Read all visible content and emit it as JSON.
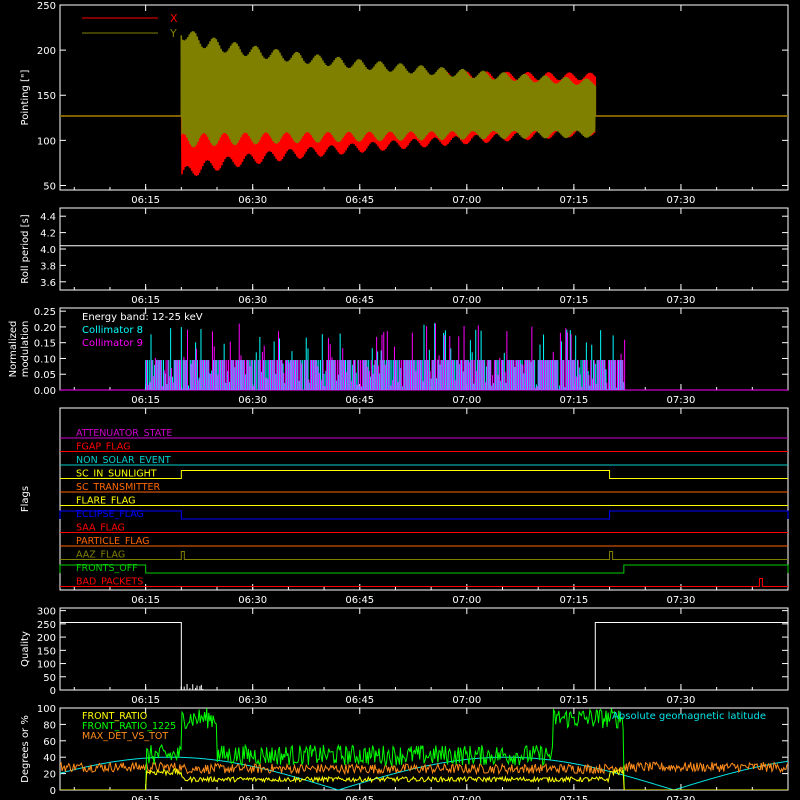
{
  "chart_data": [
    {
      "type": "line",
      "ylabel": "Pointing [\"]",
      "ylim": [
        45,
        250
      ],
      "yticks": [
        50,
        100,
        150,
        200,
        250
      ],
      "xlim": [
        "06:03",
        "07:45"
      ],
      "xticks": [
        "06:15",
        "06:30",
        "06:45",
        "07:00",
        "07:15",
        "07:30"
      ],
      "legend": "top-left",
      "series": [
        {
          "name": "X",
          "color": "#ff0000",
          "baseline": 127,
          "active_start": "06:20",
          "active_end": "07:18",
          "start_range": [
            50,
            185
          ],
          "end_range": [
            105,
            175
          ]
        },
        {
          "name": "Y",
          "color": "#808000",
          "baseline": 127,
          "active_start": "06:20",
          "active_end": "07:18",
          "start_range": [
            90,
            232
          ],
          "end_range": [
            103,
            168
          ]
        }
      ]
    },
    {
      "type": "line",
      "ylabel": "Roll period [s]",
      "ylim": [
        3.5,
        4.5
      ],
      "yticks": [
        "3.6",
        "3.8",
        "4.0",
        "4.2",
        "4.4"
      ],
      "xticks": [
        "06:15",
        "06:30",
        "06:45",
        "07:00",
        "07:15",
        "07:30"
      ],
      "series": [
        {
          "name": "",
          "color": "#ffffff",
          "value": 4.04
        }
      ]
    },
    {
      "type": "bar",
      "ylabel": "Normalized modulation",
      "ylim": [
        0,
        0.26
      ],
      "yticks": [
        "0.00",
        "0.05",
        "0.10",
        "0.15",
        "0.20",
        "0.25"
      ],
      "xticks": [
        "06:15",
        "06:30",
        "06:45",
        "07:00",
        "07:15",
        "07:30"
      ],
      "legend_title": "Energy band: 12-25 keV",
      "active_start": "06:15",
      "active_end": "07:22",
      "series": [
        {
          "name": "Collimator 8",
          "color": "#00ffff",
          "typical": 0.095
        },
        {
          "name": "Collimator 9",
          "color": "#ff00ff",
          "typical": 0.095
        }
      ]
    },
    {
      "type": "line",
      "ylabel": "Flags",
      "xticks": [
        "06:15",
        "06:30",
        "06:45",
        "07:00",
        "07:15",
        "07:30"
      ],
      "flags": [
        {
          "name": "ATTENUATOR_STATE",
          "color": "#cc00cc",
          "transitions": []
        },
        {
          "name": "FGAP_FLAG",
          "color": "#ff0000",
          "transitions": []
        },
        {
          "name": "NON_SOLAR_EVENT",
          "color": "#00cccc",
          "transitions": []
        },
        {
          "name": "SC_IN_SUNLIGHT",
          "color": "#ffff00",
          "transitions": [
            [
              "06:20",
              "07:20"
            ]
          ]
        },
        {
          "name": "SC_TRANSMITTER",
          "color": "#ff6600",
          "transitions": []
        },
        {
          "name": "FLARE_FLAG",
          "color": "#ffff00",
          "transitions": []
        },
        {
          "name": "ECLIPSE_FLAG",
          "color": "#0000ff",
          "transitions": [
            [
              "06:03",
              "06:20"
            ],
            [
              "07:20",
              "07:45"
            ]
          ]
        },
        {
          "name": "SAA_FLAG",
          "color": "#ff0000",
          "transitions": []
        },
        {
          "name": "PARTICLE_FLAG",
          "color": "#ff6600",
          "transitions": []
        },
        {
          "name": "AAZ_FLAG",
          "color": "#808000",
          "transitions": [
            [
              "06:20",
              "06:20"
            ],
            [
              "07:20",
              "07:20"
            ]
          ]
        },
        {
          "name": "FRONTS_OFF",
          "color": "#00cc00",
          "transitions": [
            [
              "06:03",
              "06:15"
            ],
            [
              "07:22",
              "07:45"
            ]
          ]
        },
        {
          "name": "BAD_PACKETS",
          "color": "#ff0000",
          "transitions": [
            [
              "07:41",
              "07:41"
            ]
          ]
        }
      ]
    },
    {
      "type": "line",
      "ylabel": "Quality",
      "ylim": [
        0,
        310
      ],
      "yticks": [
        0,
        50,
        100,
        150,
        200,
        250,
        300
      ],
      "xticks": [
        "06:15",
        "06:30",
        "06:45",
        "07:00",
        "07:15",
        "07:30"
      ],
      "series": [
        {
          "name": "",
          "color": "#ffffff",
          "segments": [
            [
              "06:03",
              "06:20",
              255
            ],
            [
              "07:18",
              "07:45",
              255
            ]
          ]
        }
      ]
    },
    {
      "type": "line",
      "ylabel": "Degrees or %",
      "ylim": [
        0,
        100
      ],
      "yticks": [
        0,
        20,
        40,
        60,
        80,
        100
      ],
      "xticks": [
        "06:15",
        "06:30",
        "06:45",
        "07:00",
        "07:15",
        "07:30"
      ],
      "series": [
        {
          "name": "FRONT_RATIO",
          "color": "#ffff00"
        },
        {
          "name": "FRONT_RATIO_1225",
          "color": "#00ff00"
        },
        {
          "name": "MAX_DET_VS_TOT",
          "color": "#ff8c1a"
        },
        {
          "name": "Absolute geomagnetic latitude",
          "color": "#00e5e5"
        }
      ]
    }
  ]
}
